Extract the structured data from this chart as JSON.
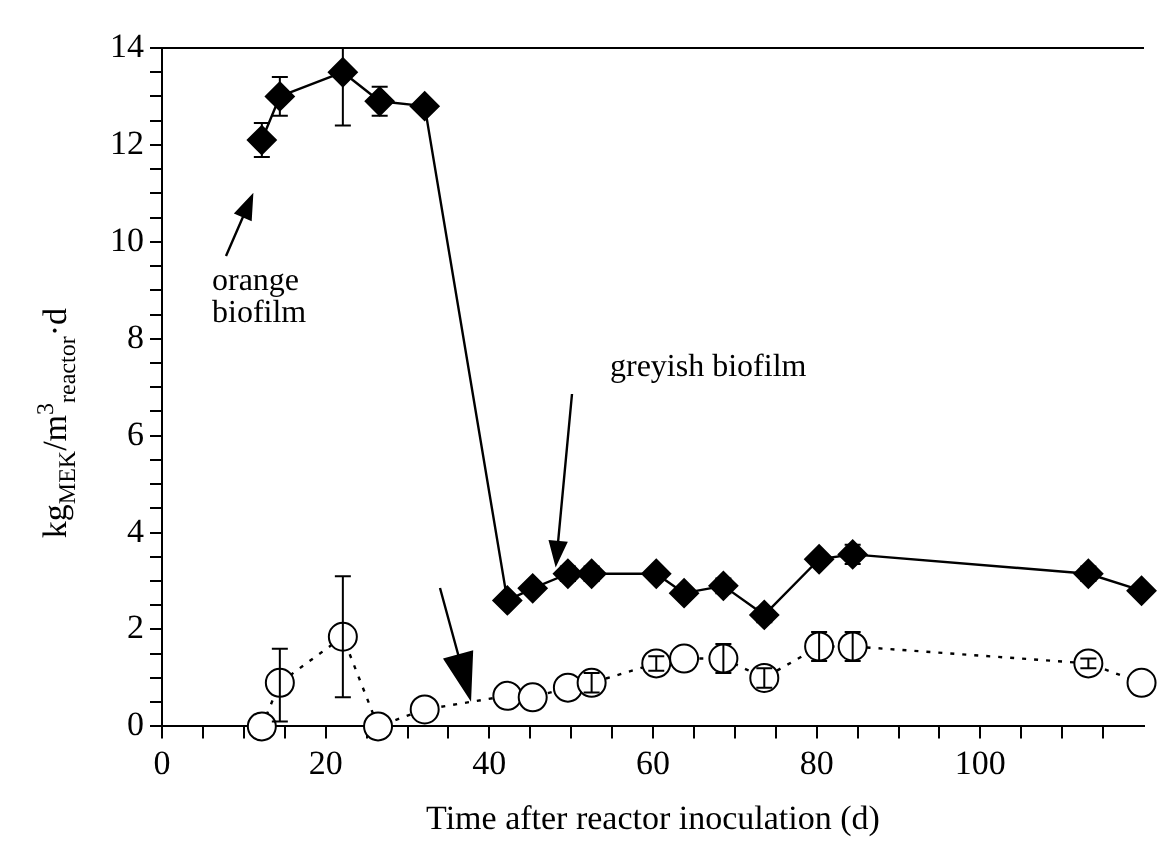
{
  "chart_data": {
    "type": "line",
    "xlabel": "Time after reactor inoculation (d)",
    "ylabel": "kg$_{MEK}$/m$^{3}$$_{reactor}$·d",
    "xlim": [
      0,
      120
    ],
    "ylim": [
      0,
      14
    ],
    "xticks": [
      0,
      {
        "value": 5,
        "label": null
      },
      {
        "value": 10,
        "label": null
      },
      {
        "value": 15,
        "label": null
      },
      20,
      {
        "value": 25,
        "label": null
      },
      {
        "value": 30,
        "label": null
      },
      {
        "value": 35,
        "label": null
      },
      40,
      {
        "value": 45,
        "label": null
      },
      {
        "value": 50,
        "label": null
      },
      {
        "value": 55,
        "label": null
      },
      60,
      {
        "value": 65,
        "label": null
      },
      {
        "value": 70,
        "label": null
      },
      {
        "value": 75,
        "label": null
      },
      80,
      {
        "value": 85,
        "label": null
      },
      {
        "value": 90,
        "label": null
      },
      {
        "value": 95,
        "label": null
      },
      100,
      {
        "value": 105,
        "label": null
      },
      {
        "value": 110,
        "label": null
      },
      {
        "value": 115,
        "label": null
      }
    ],
    "yticks": [
      0,
      {
        "value": 0.5,
        "label": null
      },
      {
        "value": 1,
        "label": null
      },
      {
        "value": 1.5,
        "label": null
      },
      2,
      {
        "value": 2.5,
        "label": null
      },
      {
        "value": 3,
        "label": null
      },
      {
        "value": 3.5,
        "label": null
      },
      4,
      {
        "value": 4.5,
        "label": null
      },
      {
        "value": 5,
        "label": null
      },
      {
        "value": 5.5,
        "label": null
      },
      6,
      {
        "value": 6.5,
        "label": null
      },
      {
        "value": 7,
        "label": null
      },
      {
        "value": 7.5,
        "label": null
      },
      8,
      {
        "value": 8.5,
        "label": null
      },
      {
        "value": 9,
        "label": null
      },
      {
        "value": 9.5,
        "label": null
      },
      10,
      {
        "value": 10.5,
        "label": null
      },
      {
        "value": 11,
        "label": null
      },
      {
        "value": 11.5,
        "label": null
      },
      12,
      {
        "value": 12.5,
        "label": null
      },
      {
        "value": 13,
        "label": null
      },
      {
        "value": 13.5,
        "label": null
      },
      14
    ],
    "grid": false,
    "legend": false,
    "series": [
      {
        "color": "#000000",
        "marker": "diamond",
        "line_style": "solid",
        "x": [
          12.2,
          14.4,
          22.1,
          26.6,
          32.1,
          42.2,
          45.3,
          49.6,
          52.5,
          60.4,
          63.8,
          68.6,
          73.6,
          80.3,
          84.4,
          113.2,
          119.7
        ],
        "values": [
          12.1,
          13.0,
          13.5,
          12.9,
          12.8,
          2.6,
          2.85,
          3.15,
          3.15,
          3.15,
          2.75,
          2.9,
          2.3,
          3.45,
          3.55,
          3.15,
          2.8
        ],
        "errors": [
          0.35,
          0.4,
          [
            12.4,
            14.0
          ],
          0.3,
          null,
          null,
          null,
          0.15,
          0.15,
          null,
          null,
          0.15,
          0.15,
          null,
          0.2,
          0.15,
          null
        ]
      },
      {
        "color": "#000000",
        "marker": "circle",
        "line_style": "dotted",
        "x": [
          12.2,
          14.4,
          22.1,
          26.4,
          32.1,
          42.2,
          45.3,
          49.6,
          52.5,
          60.4,
          63.8,
          68.6,
          73.6,
          80.3,
          84.4,
          113.2,
          119.7
        ],
        "values": [
          0,
          0.9,
          1.85,
          0,
          0.35,
          0.63,
          0.6,
          0.8,
          0.9,
          1.3,
          1.4,
          1.4,
          1.0,
          1.65,
          1.65,
          1.3,
          0.9
        ],
        "errors": [
          null,
          [
            0.1,
            1.6
          ],
          [
            0.6,
            3.1
          ],
          null,
          null,
          null,
          null,
          null,
          0.2,
          0.15,
          null,
          0.3,
          0.2,
          0.3,
          0.3,
          0.1,
          null
        ]
      }
    ],
    "annotations": [
      "orange\nbiofilm",
      "greyish biofilm"
    ]
  }
}
